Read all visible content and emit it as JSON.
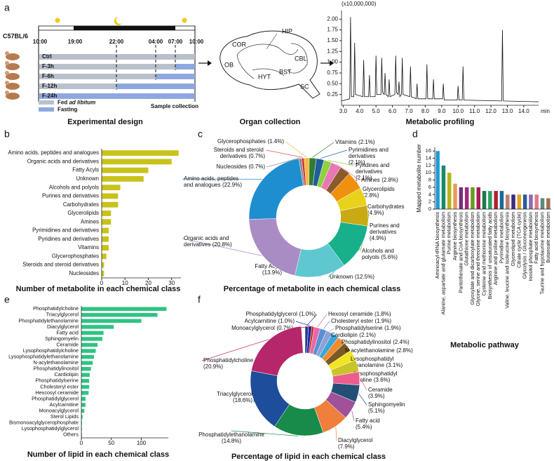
{
  "figure": {
    "panel_labels": [
      "a",
      "b",
      "c",
      "d",
      "e",
      "f"
    ]
  },
  "experimental_design": {
    "strain": "C57BL/6",
    "times": [
      "10:00",
      "19:00",
      "22:00",
      "04:00",
      "07:00",
      "10:00"
    ],
    "groups": [
      "Ctrl",
      "F-3h",
      "F-6h",
      "F-12h",
      "F-24h"
    ],
    "legend_fed": "Fed",
    "legend_fed_note": "ad libitum",
    "legend_fasting": "Fasting",
    "sample_collection": "Sample collection",
    "caption": "Experimental design"
  },
  "organ_collection": {
    "brain_regions": [
      "HIP",
      "COR",
      "CBL",
      "OB",
      "HYT",
      "BST",
      "SC"
    ],
    "caption": "Organ collection"
  },
  "chart_data": [
    {
      "type": "line",
      "caption": "Metabolic profiling",
      "y_unit": "(x10,000,000)",
      "xlabel": "min",
      "color": "#111111",
      "x": [
        2.9,
        3.4,
        3.45,
        3.5,
        3.65,
        3.7,
        3.75,
        4.2,
        4.25,
        4.3,
        4.55,
        4.6,
        4.65,
        4.95,
        5.0,
        5.05,
        5.3,
        5.35,
        5.4,
        5.5,
        5.55,
        5.6,
        5.75,
        5.8,
        5.85,
        6.15,
        6.2,
        6.25,
        6.35,
        6.4,
        6.45,
        6.55,
        6.6,
        6.65,
        7.05,
        7.1,
        7.15,
        7.45,
        7.5,
        7.55,
        8.05,
        8.1,
        8.15,
        8.45,
        8.5,
        8.55,
        9.05,
        9.1,
        9.15,
        9.95,
        10.0,
        10.05,
        10.25,
        10.3,
        10.35,
        12.65,
        12.7,
        12.75,
        14.9
      ],
      "values": [
        0.1,
        0.15,
        2.05,
        0.2,
        0.2,
        1.45,
        0.25,
        0.2,
        1.05,
        0.2,
        0.2,
        0.7,
        0.2,
        0.2,
        1.15,
        0.25,
        0.25,
        1.1,
        0.3,
        0.25,
        0.75,
        0.25,
        0.2,
        0.6,
        0.2,
        0.25,
        1.15,
        0.3,
        0.25,
        0.55,
        0.2,
        0.25,
        1.1,
        0.25,
        0.2,
        0.9,
        0.2,
        0.15,
        0.5,
        0.15,
        0.15,
        0.95,
        0.15,
        0.15,
        0.6,
        0.15,
        0.15,
        0.5,
        0.12,
        0.12,
        0.45,
        0.12,
        0.12,
        0.9,
        0.12,
        0.1,
        1.75,
        0.1,
        0.08
      ],
      "xlim": [
        2.9,
        14.9
      ],
      "ylim": [
        0,
        2.2
      ],
      "xticks": [
        {
          "value": 3,
          "label": "3.0"
        },
        {
          "value": 4,
          "label": "4.0"
        },
        {
          "value": 5,
          "label": "5.0"
        },
        {
          "value": 6,
          "label": "6.0"
        },
        {
          "value": 7,
          "label": "7.0"
        },
        {
          "value": 8,
          "label": "8.0"
        },
        {
          "value": 9,
          "label": "9.0"
        },
        {
          "value": 10,
          "label": "10.0"
        },
        {
          "value": 11,
          "label": "11.0"
        },
        {
          "value": 12,
          "label": "12.0"
        },
        {
          "value": 13,
          "label": "13.0"
        },
        {
          "value": 14,
          "label": "14.0"
        }
      ],
      "yticks": [
        0.25,
        {
          "value": 0.5,
          "label": "0.50"
        },
        0.75,
        {
          "value": 1,
          "label": "1.00"
        },
        1.25,
        {
          "value": 1.5,
          "label": "1.50"
        },
        1.75,
        {
          "value": 2,
          "label": "2.00"
        }
      ]
    },
    {
      "type": "bar",
      "orientation": "horizontal",
      "xlabel": "Number of metabolite in each chemical class",
      "color": "#c8c21a",
      "categories": [
        "Amino acids, peptides and analogues",
        "Organic acids and derivatives",
        "Fatty Acyls",
        "Unknown",
        "Alcohols and polyols",
        "Purines and derivatives",
        "Carbohydrates",
        "Glycerolipids",
        "Amines",
        "Pyrimidines and derivatives",
        "Pyridines and derivatives",
        "Vitamins",
        "Glycerophosphates",
        "Steroids and steroid derivatives",
        "Nucleosides"
      ],
      "values": [
        33,
        30,
        20,
        18,
        8,
        7,
        7,
        4,
        4,
        3,
        3,
        3,
        2,
        1,
        1
      ],
      "xlim": [
        0,
        34
      ],
      "xticks": [
        0,
        10,
        20,
        30
      ]
    },
    {
      "type": "pie",
      "title": "Percentage of metabolite in each chemical class",
      "categories": [
        "Vitamins",
        "Pyrimidines and derivatives",
        "Pyridines and derivatives",
        "Amines",
        "Glycerolipids",
        "Carbohydrates",
        "Purines and derivatives",
        "Alcohols and polyols",
        "Unknown",
        "Fatty Acyls",
        "Organic acids and derivatives",
        "Amino acids, peptides and analogues",
        "Nucleosides",
        "Steroids and steroid derivatives",
        "Glycerophosphates"
      ],
      "values": [
        2.1,
        2.1,
        2.1,
        2.8,
        2.8,
        4.9,
        4.9,
        5.6,
        12.5,
        13.9,
        20.8,
        22.9,
        0.7,
        0.7,
        1.4
      ],
      "value_labels": [
        "(2.1%)",
        "(2.1%)",
        "(2.1%)",
        "(2.8%)",
        "(2.8%)",
        "(4.9%)",
        "(4.9%)",
        "(5.6%)",
        "(12.5%)",
        "(13.9%)",
        "(20.8%)",
        "(22.9%)",
        "(0.7%)",
        "(0.7%)",
        "(1.4%)"
      ],
      "colors": [
        "#2e7d32",
        "#1f5d9c",
        "#8fd13f",
        "#e878b3",
        "#8b5a2b",
        "#f0900f",
        "#e8d21b",
        "#c9aa14",
        "#18b08a",
        "#5fc7cf",
        "#a98cc4",
        "#1f8ed0",
        "#888888",
        "#d33333",
        "#f5b942"
      ]
    },
    {
      "type": "bar",
      "orientation": "vertical",
      "xlabel": "Metabolic pathway",
      "ylabel": "Mapped metabolite number",
      "categories": [
        "Aminoacyl-tRNA biosynthesis",
        "Alanine, aspartate and glutamate metabolism",
        "Purine metabolism",
        "Arginine biosynthesis",
        "Pantothenate and CoA biosynthesis",
        "Glutathione metabolism",
        "Glyoxylate and dicarboxylate metabolism",
        "Glycine, serine and threonine metabolism",
        "Cysteine and methionine metabolism",
        "Biosynthesis of unsaturated fatty acids",
        "Arginine and proline metabolism",
        "Pyrimidine metabolism",
        "Valine, leucine and isoleucine biosynthesis",
        "Glycerolipid metabolism",
        "Citrate cycle (TCA cycle)",
        "Glycolysis / Gluconeogenesis",
        "Inositol phosphate metabolism",
        "Fatty acid biosynthesis",
        "Taurine and hypotaurine metabolism",
        "Butanoate metabolism"
      ],
      "values": [
        16,
        12,
        10,
        7,
        6,
        6,
        6,
        6,
        5,
        5,
        5,
        5,
        4,
        4,
        4,
        4,
        4,
        4,
        3,
        3
      ],
      "colors": [
        "#1f9bd7",
        "#188a6a",
        "#b8b21c",
        "#e89a58",
        "#7a2a78",
        "#a0287a",
        "#6a9a22",
        "#a81c5a",
        "#1a7a4a",
        "#2aa060",
        "#b02030",
        "#1a6a9a",
        "#c08070",
        "#3b2a80",
        "#e8a020",
        "#2a5aa0",
        "#8a6ab0",
        "#e07a8a",
        "#5a8a7a",
        "#a07050"
      ],
      "ylim": [
        0,
        17
      ],
      "yticks": [
        0,
        2,
        4,
        6,
        8,
        10,
        12,
        14,
        16
      ]
    },
    {
      "type": "bar",
      "orientation": "horizontal",
      "xlabel": "Number of lipid in each chemical class",
      "color": "#2ec483",
      "categories": [
        "Phosphatidylcholine",
        "Triacylglycerol",
        "Phosphatidylethanolamine",
        "Diacylglycerol",
        "Fatty acid",
        "Sphingomyelin",
        "Ceramide",
        "Lysophosphatidylcholine",
        "Lysophosphatidylethanolamine",
        "N-acylethanolamine",
        "Phosphatidylinositol",
        "Cardiolipin",
        "Phosphatidylserine",
        "Cholesteryl ester",
        "Hexcosyl ceramide",
        "Phosphatidylglycerol",
        "Acylcarnitine",
        "Monoacylglycerol",
        "Sterol Lipids",
        "Bismonoacylglycerophosphate",
        "Lysophosphatidylglycerol",
        "Others"
      ],
      "values": [
        142,
        127,
        100,
        54,
        37,
        35,
        27,
        24,
        21,
        19,
        16,
        14,
        13,
        13,
        12,
        7,
        7,
        5,
        2,
        1,
        1,
        1
      ],
      "xlim": [
        0,
        145
      ],
      "xticks": [
        0,
        50,
        100
      ]
    },
    {
      "type": "pie",
      "title": "Percentage of lipid in each chemical class",
      "categories": [
        "Phosphatidylglycerol",
        "Acylcarnitine",
        "Monoacylglycerol",
        "Hexosyl ceramide",
        "Cholesteryl ester",
        "Phosphatidylserine",
        "Cardiolipin",
        "Phosphatidylinositol",
        "N-acylethanolamine",
        "Lysophosphatidyl ethanolamine",
        "Lysophosphatidyl choline",
        "Ceramide",
        "Sphingomyelin",
        "Fatty acid",
        "Diacylglycerol",
        "Phosphatidylethanolamine",
        "Triacylglycerol",
        "Phosphatidylcholine"
      ],
      "values": [
        1.0,
        1.0,
        0.7,
        1.8,
        1.9,
        1.9,
        2.1,
        2.4,
        2.8,
        3.1,
        3.6,
        3.9,
        5.1,
        5.4,
        7.9,
        14.8,
        18.6,
        20.9
      ],
      "value_labels": [
        "(1.0%)",
        "(1.0%)",
        "(0.7%)",
        "(1.8%)",
        "(1.9%)",
        "(1.9%)",
        "(2.1%)",
        "(2.4%)",
        "(2.8%)",
        "(3.1%)",
        "(3.6%)",
        "(3.9%)",
        "(5.1%)",
        "(5.4%)",
        "(7.9%)",
        "(14.8%)",
        "(18.6%)",
        "(20.9%)"
      ],
      "colors": [
        "#1a3f8f",
        "#1c2aa0",
        "#d62020",
        "#e36aa8",
        "#5a8fd0",
        "#8fa0d4",
        "#3aa6d9",
        "#f08c2c",
        "#7a5a22",
        "#f2e41e",
        "#c9c42a",
        "#ec5c8f",
        "#234f75",
        "#a0519a",
        "#ef7f3a",
        "#188a4a",
        "#1d4d9b",
        "#b5276a"
      ]
    }
  ]
}
